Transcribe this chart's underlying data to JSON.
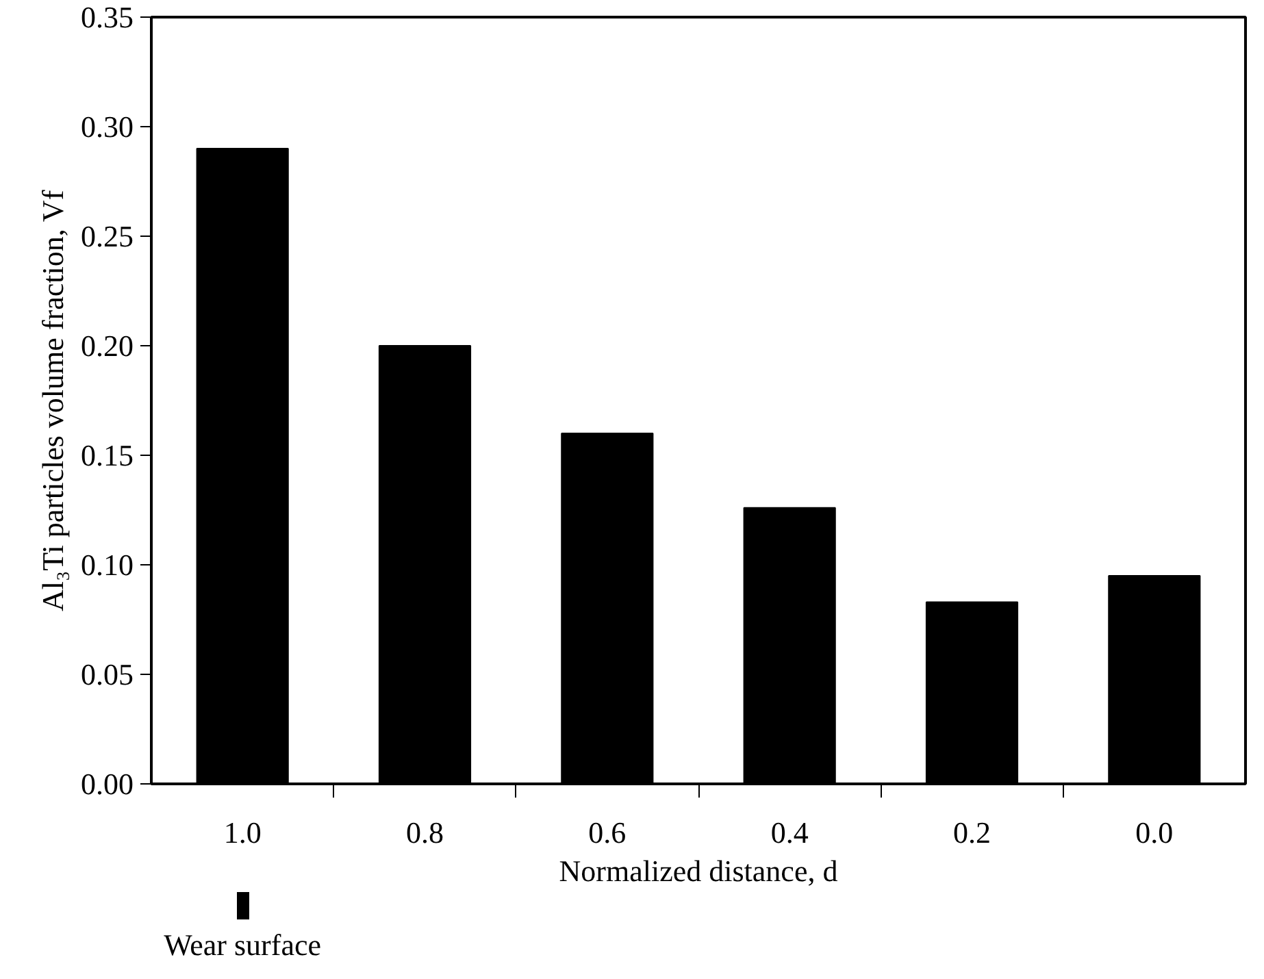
{
  "chart_data": {
    "type": "bar",
    "xlabel": "Normalized distance, d",
    "ylabel": "Al₃Ti particles volume fraction, Vf",
    "categories": [
      "1.0",
      "0.8",
      "0.6",
      "0.4",
      "0.2",
      "0.0"
    ],
    "values": [
      0.29,
      0.2,
      0.16,
      0.126,
      0.083,
      0.095
    ],
    "color": "#000000",
    "ylim": [
      0,
      0.35
    ],
    "yticks": [
      {
        "value": 0,
        "label": "0.00"
      },
      0.05,
      {
        "value": 0.1,
        "label": "0.10"
      },
      0.15,
      {
        "value": 0.2,
        "label": "0.20"
      },
      0.25,
      {
        "value": 0.3,
        "label": "0.30"
      },
      0.35
    ],
    "annotations": [
      "Wear surface"
    ],
    "grid": false
  }
}
